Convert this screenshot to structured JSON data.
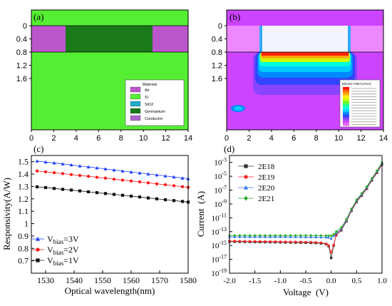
{
  "panels": {
    "a": {
      "label": "(a)",
      "x_ticks": [
        "0",
        "2",
        "4",
        "6",
        "8",
        "10",
        "12",
        "14"
      ],
      "y_ticks": [
        "0",
        "0.4",
        "0.8",
        "1.2",
        "1.6"
      ],
      "legend_title": "Materials",
      "legend_items": [
        {
          "name": "Air",
          "color": "#bb55cc"
        },
        {
          "name": "Si",
          "color": "#55ee33"
        },
        {
          "name": "SiO2",
          "color": "#22aacc"
        },
        {
          "name": "Germanium",
          "color": "#1a7a1a"
        },
        {
          "name": "Conductor",
          "color": "#aa66cc"
        }
      ],
      "colors": {
        "si": "#55ee33",
        "ge": "#1a7a1a",
        "conductor": "#bb55cc",
        "line": "#000000"
      }
    },
    "b": {
      "label": "(b)",
      "x_ticks": [
        "0",
        "2",
        "4",
        "6",
        "8",
        "10",
        "12",
        "14"
      ],
      "y_ticks": [
        "0",
        "0.4",
        "0.8",
        "1.2",
        "1.6"
      ],
      "legend_title": "Electric Field (V/cm)",
      "colorbar": [
        "#ff1100",
        "#ff6600",
        "#ffaa00",
        "#ffee00",
        "#ccff00",
        "#66ff22",
        "#22ff88",
        "#00ffdd",
        "#00ccff",
        "#0088ff",
        "#3344ff",
        "#8844ff",
        "#cc44ff",
        "#ee66ff"
      ]
    },
    "c": {
      "label": "(c)",
      "legend": [
        {
          "v": "V",
          "sub": "bias",
          "val": "=3V",
          "color": "#1f3fff",
          "marker": "triangle"
        },
        {
          "v": "V",
          "sub": "bias",
          "val": "=2V",
          "color": "#ff1111",
          "marker": "circle"
        },
        {
          "v": "V",
          "sub": "bias",
          "val": "=1V",
          "color": "#111111",
          "marker": "square"
        }
      ]
    },
    "d": {
      "label": "(d)",
      "legend": [
        {
          "name": "2E18",
          "color": "#333333",
          "marker": "square"
        },
        {
          "name": "2E19",
          "color": "#ff2222",
          "marker": "circle"
        },
        {
          "name": "2E20",
          "color": "#3377ff",
          "marker": "triangle"
        },
        {
          "name": "2E21",
          "color": "#22aa22",
          "marker": "diamond"
        }
      ]
    }
  },
  "chart_data": [
    {
      "type": "line",
      "panel": "c",
      "xlabel": "Optical wavelength(nm)",
      "ylabel": "Responsivity(A/W)",
      "xlim": [
        1525,
        1580
      ],
      "ylim": [
        0.6,
        1.55
      ],
      "x_ticks": [
        1530,
        1540,
        1550,
        1560,
        1570,
        1580
      ],
      "y_ticks": [
        0.7,
        0.8,
        0.9,
        1.0,
        1.1,
        1.2,
        1.3,
        1.4,
        1.5
      ],
      "x": [
        1527,
        1530,
        1533,
        1536,
        1539,
        1542,
        1545,
        1548,
        1551,
        1554,
        1557,
        1560,
        1563,
        1566,
        1569,
        1572,
        1575,
        1578,
        1580
      ],
      "series": [
        {
          "name": "Vbias=3V",
          "values": [
            1.505,
            1.497,
            1.49,
            1.482,
            1.474,
            1.466,
            1.458,
            1.45,
            1.442,
            1.433,
            1.425,
            1.417,
            1.409,
            1.401,
            1.393,
            1.385,
            1.377,
            1.368,
            1.363
          ]
        },
        {
          "name": "Vbias=2V",
          "values": [
            1.425,
            1.418,
            1.411,
            1.404,
            1.396,
            1.389,
            1.382,
            1.374,
            1.367,
            1.359,
            1.351,
            1.344,
            1.337,
            1.329,
            1.321,
            1.314,
            1.306,
            1.298,
            1.293
          ]
        },
        {
          "name": "Vbias=1V",
          "values": [
            1.297,
            1.291,
            1.284,
            1.277,
            1.271,
            1.264,
            1.257,
            1.25,
            1.243,
            1.236,
            1.229,
            1.222,
            1.215,
            1.207,
            1.2,
            1.193,
            1.186,
            1.179,
            1.174
          ]
        }
      ]
    },
    {
      "type": "line",
      "panel": "d",
      "xlabel": "Voltage  (V)",
      "ylabel": "Current  (A)",
      "yscale": "log",
      "xlim": [
        -2.0,
        1.0
      ],
      "ylim_exp": [
        -19,
        -2
      ],
      "x_ticks": [
        "-2.0",
        "-1.5",
        "-1.0",
        "-0.5",
        "0.0",
        "0.5",
        "1.0"
      ],
      "y_tick_exps": [
        -19,
        -17,
        -15,
        -13,
        -11,
        -9,
        -7,
        -5,
        -3
      ],
      "x": [
        -2.0,
        -1.9,
        -1.8,
        -1.7,
        -1.6,
        -1.5,
        -1.4,
        -1.3,
        -1.2,
        -1.1,
        -1.0,
        -0.9,
        -0.8,
        -0.7,
        -0.6,
        -0.5,
        -0.4,
        -0.3,
        -0.2,
        -0.1,
        -0.05,
        0.0,
        0.05,
        0.1,
        0.2,
        0.3,
        0.4,
        0.5,
        0.6,
        0.7,
        0.8,
        0.9,
        1.0
      ],
      "series": [
        {
          "name": "2E18",
          "log10": [
            -14.45,
            -14.46,
            -14.47,
            -14.48,
            -14.49,
            -14.5,
            -14.51,
            -14.52,
            -14.53,
            -14.54,
            -14.55,
            -14.56,
            -14.57,
            -14.58,
            -14.59,
            -14.6,
            -14.62,
            -14.64,
            -14.7,
            -14.8,
            -15.1,
            -16.8,
            -15.0,
            -13.5,
            -12.8,
            -11.5,
            -10.0,
            -8.7,
            -7.8,
            -6.8,
            -5.6,
            -4.5,
            -3.3
          ]
        },
        {
          "name": "2E19",
          "log10": [
            -14.35,
            -14.36,
            -14.37,
            -14.38,
            -14.39,
            -14.4,
            -14.41,
            -14.42,
            -14.43,
            -14.44,
            -14.45,
            -14.46,
            -14.47,
            -14.48,
            -14.49,
            -14.5,
            -14.52,
            -14.55,
            -14.6,
            -14.75,
            -15.0,
            -16.0,
            -14.9,
            -13.4,
            -12.7,
            -11.4,
            -9.9,
            -8.6,
            -7.7,
            -6.7,
            -5.5,
            -4.4,
            -3.2
          ]
        },
        {
          "name": "2E20",
          "log10": [
            -13.75,
            -13.75,
            -13.75,
            -13.75,
            -13.75,
            -13.75,
            -13.75,
            -13.75,
            -13.75,
            -13.75,
            -13.75,
            -13.75,
            -13.75,
            -13.76,
            -13.76,
            -13.77,
            -13.78,
            -13.79,
            -13.8,
            -13.8,
            -13.82,
            -14.0,
            -13.6,
            -13.2,
            -12.6,
            -11.3,
            -9.8,
            -8.5,
            -7.6,
            -6.6,
            -5.4,
            -4.3,
            -3.1
          ]
        },
        {
          "name": "2E21",
          "log10": [
            -13.55,
            -13.55,
            -13.55,
            -13.55,
            -13.55,
            -13.55,
            -13.55,
            -13.55,
            -13.55,
            -13.55,
            -13.55,
            -13.55,
            -13.55,
            -13.55,
            -13.55,
            -13.55,
            -13.55,
            -13.56,
            -13.57,
            -13.58,
            -13.6,
            -13.6,
            -13.4,
            -13.0,
            -12.4,
            -11.2,
            -9.7,
            -8.4,
            -7.5,
            -6.5,
            -5.3,
            -4.2,
            -3.0
          ]
        }
      ]
    }
  ]
}
